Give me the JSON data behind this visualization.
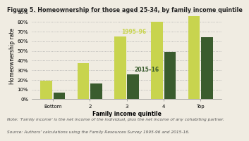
{
  "title": "Figure 5. Homeownership for those aged 25-34, by family income quintile",
  "xlabel": "Family income quintile",
  "ylabel": "Homeownership rate",
  "categories": [
    "Bottom",
    "2",
    "3",
    "4",
    "Top"
  ],
  "values_1995": [
    19,
    37,
    65,
    80,
    86
  ],
  "values_2015": [
    7,
    16,
    26,
    49,
    64
  ],
  "color_1995": "#c8d44e",
  "color_2015": "#3a5c2e",
  "label_1995": "1995–96",
  "label_2015": "2015–16",
  "ylim": [
    0,
    90
  ],
  "yticks": [
    0,
    10,
    20,
    30,
    40,
    50,
    60,
    70,
    80,
    90
  ],
  "ytick_labels": [
    "0%",
    "10%",
    "20%",
    "30%",
    "40%",
    "50%",
    "60%",
    "70%",
    "80%",
    "90%"
  ],
  "note_line1": "Note: ‘Family income’ is the net income of the individual, plus the net income of any cohabiting partner.",
  "note_line2": "Source: Authors’ calculations using the Family Resources Survey 1995-96 and 2015-16.",
  "background_color": "#f0ece2",
  "title_fontsize": 5.8,
  "axis_fontsize": 5.5,
  "tick_fontsize": 5.0,
  "note_fontsize": 4.2,
  "annotation_fontsize": 5.5,
  "bar_width": 0.32,
  "bar_gap": 0.35
}
